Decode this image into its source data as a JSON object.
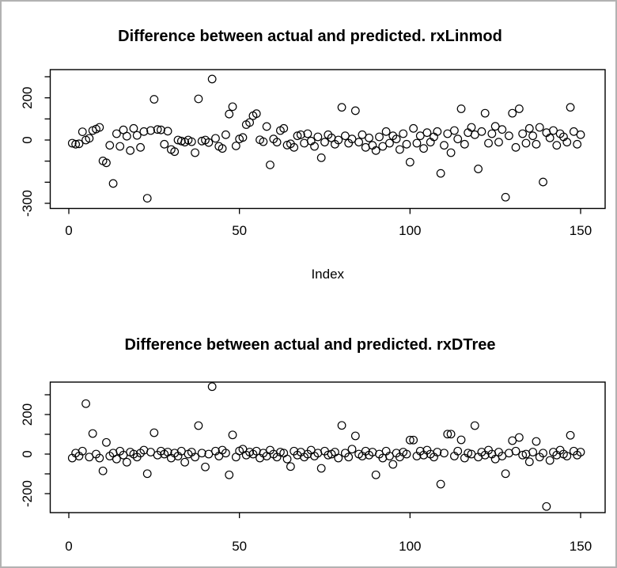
{
  "window": {
    "background": "#ffffff",
    "border_color": "#b2b2b2",
    "plot_color": "#000000"
  },
  "chart_data": [
    {
      "type": "scatter",
      "title": "Difference between actual and predicted. rxLinmod",
      "xlabel": "Index",
      "ylabel": "",
      "marker": "open-circle",
      "x_start": 1,
      "x_ticks": [
        0,
        50,
        100,
        150
      ],
      "y_ticks": [
        300,
        200,
        100,
        0,
        -100,
        -200,
        -300
      ],
      "y_tick_labels_shown": [
        200,
        0,
        -300
      ],
      "xlim": [
        -5,
        156
      ],
      "ylim": [
        -325,
        335
      ],
      "grid": false,
      "values": [
        -15,
        -20,
        -18,
        39,
        0,
        8,
        45,
        52,
        60,
        -99,
        -108,
        -25,
        -206,
        30,
        -30,
        48,
        18,
        -50,
        55,
        22,
        -35,
        40,
        -276,
        45,
        193,
        50,
        48,
        -20,
        42,
        -45,
        -55,
        0,
        -5,
        -10,
        0,
        -8,
        -60,
        195,
        -5,
        0,
        -12,
        289,
        8,
        -30,
        -40,
        25,
        123,
        158,
        -28,
        5,
        12,
        73,
        83,
        115,
        125,
        1,
        -8,
        64,
        -118,
        5,
        -10,
        45,
        55,
        -24,
        -18,
        -35,
        20,
        25,
        -15,
        30,
        -5,
        -30,
        15,
        -84,
        -10,
        25,
        10,
        -20,
        0,
        155,
        20,
        -15,
        5,
        139,
        -10,
        25,
        -35,
        10,
        -25,
        -50,
        15,
        -30,
        40,
        -15,
        20,
        5,
        -45,
        30,
        -20,
        -105,
        55,
        -15,
        20,
        -40,
        35,
        -10,
        15,
        40,
        -158,
        -25,
        30,
        -60,
        45,
        5,
        148,
        -20,
        35,
        60,
        25,
        -137,
        40,
        127,
        -15,
        30,
        65,
        -10,
        50,
        -271,
        20,
        127,
        -35,
        148,
        30,
        -15,
        55,
        20,
        -20,
        60,
        -199,
        35,
        10,
        45,
        -25,
        30,
        15,
        -10,
        155,
        40,
        -20,
        25
      ]
    },
    {
      "type": "scatter",
      "title": "Difference between actual and predicted. rxDTree",
      "xlabel": "",
      "ylabel": "",
      "marker": "open-circle",
      "x_start": 1,
      "x_ticks": [
        0,
        50,
        100,
        150
      ],
      "y_ticks": [
        300,
        200,
        100,
        0,
        -100,
        -200
      ],
      "y_tick_labels_shown": [
        200,
        0,
        -200
      ],
      "xlim": [
        -5,
        156
      ],
      "ylim": [
        -290,
        375
      ],
      "grid": false,
      "values": [
        -20,
        5,
        -10,
        15,
        255,
        -15,
        104,
        0,
        -20,
        -85,
        59,
        -10,
        5,
        -25,
        15,
        -5,
        -41,
        10,
        0,
        -15,
        5,
        20,
        -99,
        10,
        108,
        -5,
        15,
        0,
        10,
        -20,
        5,
        -10,
        15,
        -41,
        0,
        10,
        -15,
        144,
        5,
        -65,
        0,
        341,
        15,
        -10,
        20,
        5,
        -105,
        97,
        -15,
        16,
        25,
        -5,
        10,
        0,
        15,
        -20,
        5,
        -10,
        20,
        0,
        -15,
        10,
        5,
        -25,
        -63,
        15,
        -5,
        10,
        -15,
        0,
        20,
        -10,
        5,
        -72,
        15,
        -5,
        0,
        10,
        -20,
        145,
        5,
        -15,
        25,
        92,
        0,
        -10,
        15,
        -5,
        10,
        -105,
        0,
        -20,
        15,
        -10,
        -52,
        5,
        -15,
        10,
        0,
        71,
        71,
        -10,
        15,
        -5,
        20,
        0,
        -15,
        10,
        -152,
        5,
        101,
        101,
        -10,
        15,
        72,
        -20,
        5,
        0,
        144,
        -15,
        10,
        -5,
        20,
        0,
        -25,
        10,
        -10,
        -99,
        5,
        68,
        15,
        84,
        -5,
        0,
        -39,
        10,
        64,
        -15,
        5,
        -265,
        -32,
        10,
        -5,
        20,
        0,
        -10,
        95,
        15,
        -5,
        10
      ]
    }
  ]
}
